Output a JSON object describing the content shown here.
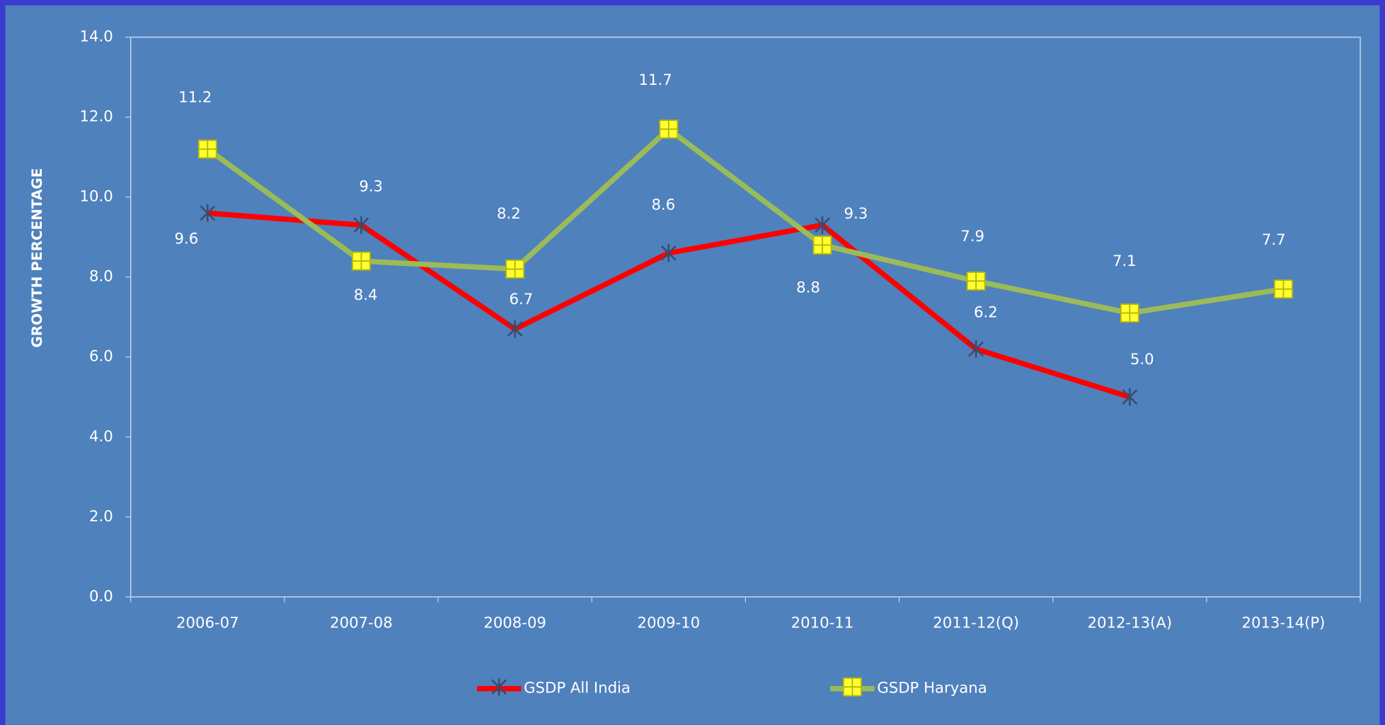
{
  "chart_data": {
    "type": "line",
    "y_label": "GROWTH   PERCENTAGE",
    "categories": [
      "2006-07",
      "2007-08",
      "2008-09",
      "2009-10",
      "2010-11",
      "2011-12(Q)",
      "2012-13(A)",
      "2013-14(P)"
    ],
    "series": [
      {
        "name": "GSDP All India",
        "color": "#ff0000",
        "values": [
          9.6,
          9.3,
          6.7,
          8.6,
          9.3,
          6.2,
          5.0,
          null
        ],
        "value_labels": [
          "9.6",
          "9.3",
          "6.7",
          "8.6",
          "9.3",
          "6.2",
          "5.0",
          null
        ]
      },
      {
        "name": "GSDP Haryana",
        "color": "#9bbb59",
        "values": [
          11.2,
          8.4,
          8.2,
          11.7,
          8.8,
          7.9,
          7.1,
          7.7
        ],
        "value_labels": [
          "11.2",
          "8.4",
          "8.2",
          "11.7",
          "8.8",
          "7.9",
          "7.1",
          "7.7"
        ]
      }
    ],
    "ylim": [
      0,
      14
    ],
    "yticks": [
      {
        "value": 0,
        "label": "0.0"
      },
      {
        "value": 2,
        "label": "2.0"
      },
      {
        "value": 4,
        "label": "4.0"
      },
      {
        "value": 6,
        "label": "6.0"
      },
      {
        "value": 8,
        "label": "8.0"
      },
      {
        "value": 10,
        "label": "10.0"
      },
      {
        "value": 12,
        "label": "12.0"
      },
      {
        "value": 14,
        "label": "14.0"
      }
    ],
    "legend": "bottom"
  }
}
